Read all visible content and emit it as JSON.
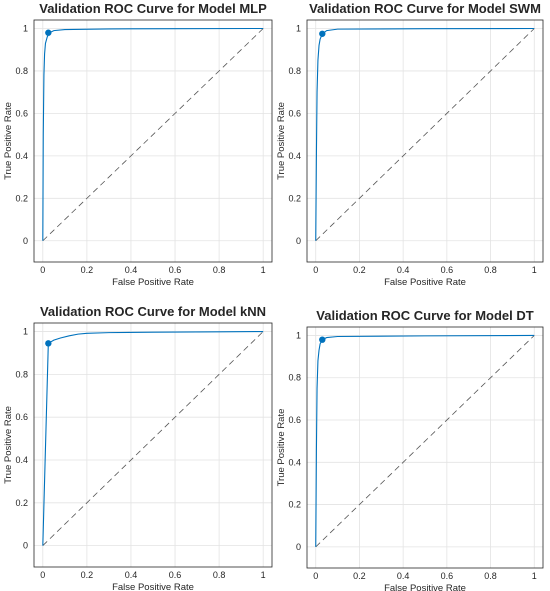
{
  "colors": {
    "curve": "#0072bd",
    "diagonal": "#555555",
    "grid": "#e3e3e3",
    "axes": "#262626"
  },
  "chart_data": [
    {
      "type": "line",
      "title": "Validation ROC Curve for Model MLP",
      "xlabel": "False Positive Rate",
      "ylabel": "True Positive Rate",
      "xlim": [
        -0.04,
        1.04
      ],
      "ylim": [
        -0.1,
        1.04
      ],
      "xticks": [
        "0",
        "0.2",
        "0.4",
        "0.6",
        "0.8",
        "1"
      ],
      "yticks": [
        "0",
        "0.2",
        "0.4",
        "0.6",
        "0.8",
        "1"
      ],
      "grid": true,
      "series": [
        {
          "x": [
            0,
            0.002,
            0.005,
            0.008,
            0.012,
            0.02,
            0.03,
            0.05,
            0.1,
            0.3,
            0.6,
            1.0
          ],
          "y": [
            0,
            0.5,
            0.78,
            0.88,
            0.93,
            0.96,
            0.98,
            0.99,
            0.995,
            0.998,
            0.999,
            1.0
          ]
        },
        {
          "x": [
            0,
            1
          ],
          "y": [
            0,
            1
          ]
        }
      ],
      "operating_point": {
        "x": 0.025,
        "y": 0.98
      }
    },
    {
      "type": "line",
      "title": "Validation ROC Curve for Model SWM",
      "xlabel": "False Positive Rate",
      "ylabel": "True Positive Rate",
      "xlim": [
        -0.04,
        1.04
      ],
      "ylim": [
        -0.1,
        1.04
      ],
      "xticks": [
        "0",
        "0.2",
        "0.4",
        "0.6",
        "0.8",
        "1"
      ],
      "yticks": [
        "0",
        "0.2",
        "0.4",
        "0.6",
        "0.8",
        "1"
      ],
      "grid": true,
      "series": [
        {
          "x": [
            0,
            0.003,
            0.006,
            0.01,
            0.015,
            0.02,
            0.03,
            0.05,
            0.1,
            0.5,
            1.0
          ],
          "y": [
            0,
            0.4,
            0.7,
            0.85,
            0.92,
            0.95,
            0.975,
            0.99,
            0.997,
            0.999,
            1.0
          ]
        },
        {
          "x": [
            0,
            1
          ],
          "y": [
            0,
            1
          ]
        }
      ],
      "operating_point": {
        "x": 0.03,
        "y": 0.975
      }
    },
    {
      "type": "line",
      "title": "Validation ROC Curve for Model kNN",
      "xlabel": "False Positive Rate",
      "ylabel": "True Positive Rate",
      "xlim": [
        -0.04,
        1.04
      ],
      "ylim": [
        -0.1,
        1.04
      ],
      "xticks": [
        "0",
        "0.2",
        "0.4",
        "0.6",
        "0.8",
        "1"
      ],
      "yticks": [
        "0",
        "0.2",
        "0.4",
        "0.6",
        "0.8",
        "1"
      ],
      "grid": true,
      "series": [
        {
          "x": [
            0,
            0.025,
            0.05,
            0.08,
            0.12,
            0.16,
            0.2,
            0.3,
            0.5,
            0.8,
            1.0
          ],
          "y": [
            0,
            0.945,
            0.96,
            0.97,
            0.98,
            0.988,
            0.992,
            0.995,
            0.997,
            0.999,
            1.0
          ]
        },
        {
          "x": [
            0,
            1
          ],
          "y": [
            0,
            1
          ]
        }
      ],
      "operating_point": {
        "x": 0.025,
        "y": 0.945
      }
    },
    {
      "type": "line",
      "title": "Validation ROC Curve for Model DT",
      "xlabel": "False Positive Rate",
      "ylabel": "True Positive Rate",
      "xlim": [
        -0.04,
        1.04
      ],
      "ylim": [
        -0.1,
        1.04
      ],
      "xticks": [
        "0",
        "0.2",
        "0.4",
        "0.6",
        "0.8",
        "1"
      ],
      "yticks": [
        "0",
        "0.2",
        "0.4",
        "0.6",
        "0.8",
        "1"
      ],
      "grid": true,
      "series": [
        {
          "x": [
            0,
            0.003,
            0.006,
            0.01,
            0.015,
            0.02,
            0.03,
            0.05,
            0.1,
            0.5,
            1.0
          ],
          "y": [
            0,
            0.45,
            0.75,
            0.88,
            0.93,
            0.96,
            0.98,
            0.99,
            0.995,
            0.998,
            1.0
          ]
        },
        {
          "x": [
            0,
            1
          ],
          "y": [
            0,
            1
          ]
        }
      ],
      "operating_point": {
        "x": 0.03,
        "y": 0.98
      }
    }
  ]
}
